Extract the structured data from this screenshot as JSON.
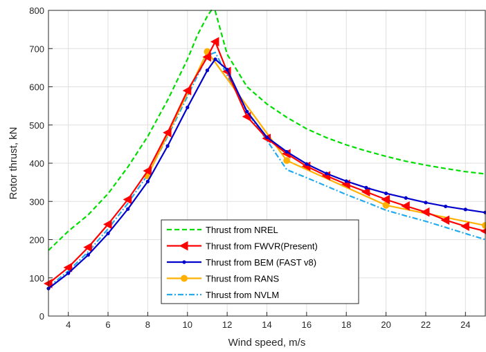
{
  "chart_data": {
    "type": "line",
    "title": "",
    "xlabel": "Wind speed, m/s",
    "ylabel": "Rotor thrust, kN",
    "xlim": [
      3,
      25
    ],
    "ylim": [
      0,
      800
    ],
    "xticks": [
      4,
      6,
      8,
      10,
      12,
      14,
      16,
      18,
      20,
      22,
      24
    ],
    "yticks": [
      0,
      100,
      200,
      300,
      400,
      500,
      600,
      700,
      800
    ],
    "grid": true,
    "legend_position": "bottom-center",
    "series": [
      {
        "name": "Thrust from NREL",
        "color": "#00dd00",
        "style": "dashed",
        "marker": "none",
        "x": [
          3,
          4,
          5,
          6,
          7,
          8,
          9,
          10,
          10.5,
          11,
          11.2,
          11.4,
          11.6,
          12,
          13,
          14,
          15,
          16,
          17,
          18,
          19,
          20,
          21,
          22,
          23,
          24,
          25
        ],
        "y": [
          172,
          222,
          265,
          320,
          390,
          470,
          565,
          672,
          735,
          785,
          800,
          798,
          760,
          685,
          600,
          555,
          520,
          490,
          467,
          448,
          432,
          418,
          405,
          395,
          386,
          378,
          372
        ]
      },
      {
        "name": "Thrust from FWVR(Present)",
        "color": "#ff0000",
        "style": "solid",
        "marker": "left-triangle",
        "x": [
          3,
          4,
          5,
          6,
          7,
          8,
          9,
          10,
          11,
          11.4,
          12,
          13,
          14,
          15,
          16,
          17,
          18,
          19,
          20,
          21,
          22,
          23,
          24,
          25
        ],
        "y": [
          85,
          127,
          180,
          240,
          305,
          380,
          480,
          590,
          678,
          718,
          640,
          522,
          465,
          425,
          392,
          367,
          345,
          325,
          305,
          288,
          272,
          251,
          235,
          222
        ]
      },
      {
        "name": "Thrust from BEM (FAST v8)",
        "color": "#0000cc",
        "style": "solid",
        "marker": "dot",
        "x": [
          3,
          4,
          5,
          6,
          7,
          8,
          9,
          10,
          11,
          11.4,
          12,
          13,
          14,
          15,
          16,
          17,
          18,
          19,
          20,
          21,
          22,
          23,
          24,
          25
        ],
        "y": [
          72,
          112,
          160,
          216,
          280,
          352,
          445,
          546,
          643,
          672,
          645,
          535,
          468,
          430,
          398,
          373,
          353,
          336,
          321,
          309,
          297,
          287,
          279,
          271
        ]
      },
      {
        "name": "Thrust from RANS",
        "color": "#ffb000",
        "style": "solid",
        "marker": "circle",
        "x": [
          8,
          11,
          15,
          20,
          25
        ],
        "y": [
          367,
          692,
          407,
          290,
          237
        ]
      },
      {
        "name": "Thrust from NVLM",
        "color": "#22aaee",
        "style": "dashdot",
        "marker": "none",
        "x": [
          3,
          4,
          5,
          6,
          7,
          8,
          9,
          10,
          11,
          11.4,
          12,
          13,
          14,
          15,
          16,
          17,
          18,
          19,
          20,
          21,
          22,
          23,
          24,
          25
        ],
        "y": [
          76,
          118,
          168,
          228,
          295,
          370,
          470,
          575,
          682,
          690,
          630,
          535,
          460,
          383,
          362,
          340,
          318,
          298,
          277,
          262,
          248,
          232,
          216,
          200
        ]
      }
    ]
  }
}
